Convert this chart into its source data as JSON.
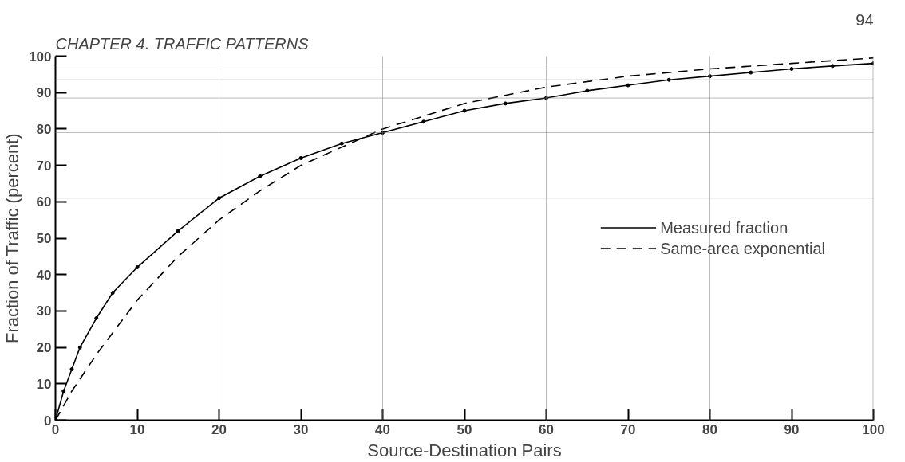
{
  "chart_data": {
    "type": "line",
    "xlabel": "Source-Destination Pairs",
    "ylabel": "Fraction of Traffic (percent)",
    "annotations": [
      "CHAPTER 4. TRAFFIC PATTERNS",
      "94"
    ],
    "xlim": [
      0,
      100
    ],
    "ylim": [
      0,
      100
    ],
    "xticks": [
      0,
      10,
      20,
      30,
      40,
      50,
      60,
      70,
      80,
      90,
      100
    ],
    "yticks": [
      0,
      10,
      20,
      30,
      40,
      50,
      60,
      70,
      80,
      90,
      100
    ],
    "grid": false,
    "legend": "right",
    "ref_lines": [
      {
        "axis": "x",
        "value": 20,
        "label": null
      },
      {
        "axis": "x",
        "value": 40,
        "label": null
      },
      {
        "axis": "x",
        "value": 60,
        "label": null
      },
      {
        "axis": "x",
        "value": 80,
        "label": null
      },
      {
        "axis": "x",
        "value": 100,
        "label": null
      },
      {
        "axis": "y",
        "value": 61,
        "label": null
      },
      {
        "axis": "y",
        "value": 79,
        "label": null
      },
      {
        "axis": "y",
        "value": 88.5,
        "label": null
      },
      {
        "axis": "y",
        "value": 93.5,
        "label": null
      },
      {
        "axis": "y",
        "value": 96.5,
        "label": null
      }
    ],
    "series": [
      {
        "name": "Measured fraction",
        "color": "#000000",
        "marker": "circle",
        "line_style": "solid",
        "x": [
          0,
          1,
          2,
          3,
          5,
          7,
          10,
          15,
          20,
          25,
          30,
          35,
          40,
          45,
          50,
          55,
          60,
          65,
          70,
          75,
          80,
          85,
          90,
          95,
          100
        ],
        "values": [
          0,
          8,
          14,
          20,
          28,
          35,
          42,
          52,
          61,
          67,
          72,
          76,
          79,
          82,
          85,
          87,
          88.5,
          90.5,
          92,
          93.5,
          94.5,
          95.5,
          96.5,
          97.3,
          98
        ]
      },
      {
        "name": "Same-area exponential",
        "color": "#000000",
        "marker": "none",
        "line_style": "dashed",
        "x": [
          0,
          2,
          5,
          10,
          15,
          20,
          25,
          30,
          40,
          50,
          60,
          70,
          80,
          90,
          100
        ],
        "values": [
          0,
          8,
          18,
          33,
          45,
          55,
          63,
          70,
          80,
          87,
          91.5,
          94.5,
          96.5,
          98,
          99.5
        ]
      }
    ]
  }
}
